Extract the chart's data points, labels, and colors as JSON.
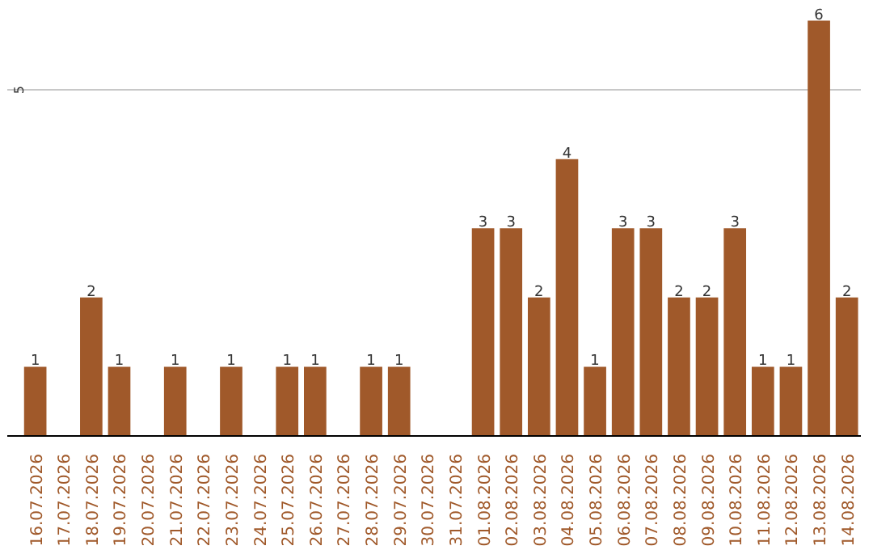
{
  "chart_data": {
    "type": "bar",
    "categories": [
      "16.07.2026",
      "17.07.2026",
      "18.07.2026",
      "19.07.2026",
      "20.07.2026",
      "21.07.2026",
      "22.07.2026",
      "23.07.2026",
      "24.07.2026",
      "25.07.2026",
      "26.07.2026",
      "27.07.2026",
      "28.07.2026",
      "29.07.2026",
      "30.07.2026",
      "31.07.2026",
      "01.08.2026",
      "02.08.2026",
      "03.08.2026",
      "04.08.2026",
      "05.08.2026",
      "06.08.2026",
      "07.08.2026",
      "08.08.2026",
      "09.08.2026",
      "10.08.2026",
      "11.08.2026",
      "12.08.2026",
      "13.08.2026",
      "14.08.2026"
    ],
    "values": [
      1,
      0,
      2,
      1,
      0,
      1,
      0,
      1,
      0,
      1,
      1,
      0,
      1,
      1,
      0,
      0,
      3,
      3,
      2,
      4,
      1,
      3,
      3,
      2,
      2,
      3,
      1,
      1,
      6,
      2
    ],
    "value_labels": [
      "1",
      null,
      "2",
      "1",
      null,
      "1",
      null,
      "1",
      null,
      "1",
      "1",
      null,
      "1",
      "1",
      null,
      null,
      "3",
      "3",
      "2",
      "4",
      "1",
      "3",
      "3",
      "2",
      "2",
      "3",
      "1",
      "1",
      "6",
      "2"
    ],
    "color": "#a0592a",
    "ref_lines": [
      {
        "axis": "y",
        "value": 5,
        "label": "5",
        "color": "#c8c8c8"
      }
    ]
  }
}
